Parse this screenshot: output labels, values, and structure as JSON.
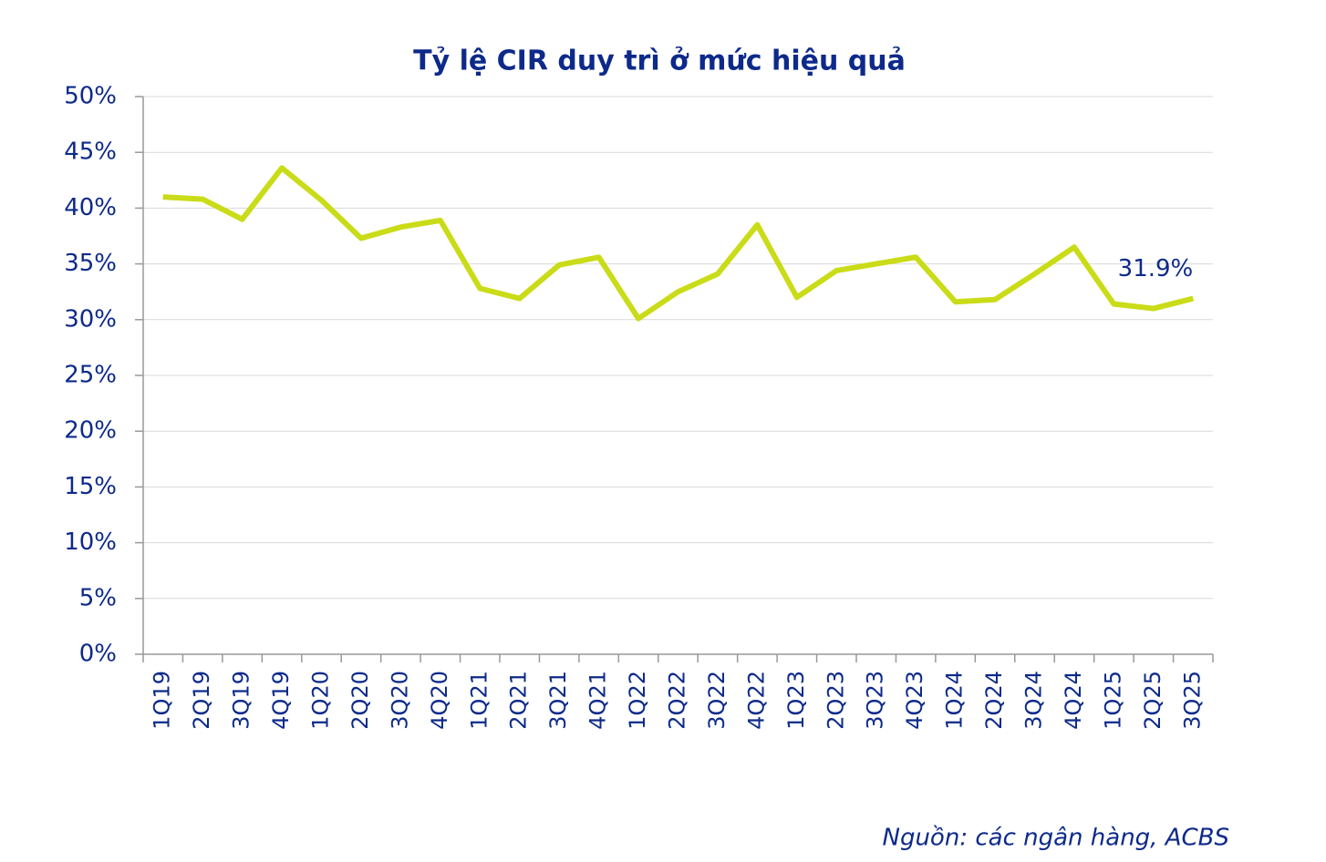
{
  "chart_data": {
    "type": "line",
    "title": "Tỷ lệ CIR duy trì ở mức hiệu quả",
    "categories": [
      "1Q19",
      "2Q19",
      "3Q19",
      "4Q19",
      "1Q20",
      "2Q20",
      "3Q20",
      "4Q20",
      "1Q21",
      "2Q21",
      "3Q21",
      "4Q21",
      "1Q22",
      "2Q22",
      "3Q22",
      "4Q22",
      "1Q23",
      "2Q23",
      "3Q23",
      "4Q23",
      "1Q24",
      "2Q24",
      "3Q24",
      "4Q24",
      "1Q25",
      "2Q25",
      "3Q25"
    ],
    "series": [
      {
        "name": "CIR",
        "color": "#c9dc17",
        "values": [
          41.0,
          40.8,
          39.0,
          43.6,
          40.7,
          37.3,
          38.3,
          38.9,
          32.8,
          31.9,
          34.9,
          35.6,
          30.1,
          32.5,
          34.1,
          38.5,
          32.0,
          34.4,
          35.0,
          35.6,
          31.6,
          31.8,
          34.1,
          36.5,
          31.4,
          31.0,
          31.9
        ],
        "value_labels": [
          null,
          null,
          null,
          null,
          null,
          null,
          null,
          null,
          null,
          null,
          null,
          null,
          null,
          null,
          null,
          null,
          null,
          null,
          null,
          null,
          null,
          null,
          null,
          null,
          null,
          null,
          "31.9%"
        ]
      }
    ],
    "ylim": [
      0,
      50
    ],
    "yticks": [
      {
        "value": 0,
        "label": "0%"
      },
      {
        "value": 5,
        "label": "5%"
      },
      {
        "value": 10,
        "label": "10%"
      },
      {
        "value": 15,
        "label": "15%"
      },
      {
        "value": 20,
        "label": "20%"
      },
      {
        "value": 25,
        "label": "25%"
      },
      {
        "value": 30,
        "label": "30%"
      },
      {
        "value": 35,
        "label": "35%"
      },
      {
        "value": 40,
        "label": "40%"
      },
      {
        "value": 45,
        "label": "45%"
      },
      {
        "value": 50,
        "label": "50%"
      }
    ],
    "grid": true,
    "source": "Nguồn:  các ngân hàng, ACBS"
  }
}
